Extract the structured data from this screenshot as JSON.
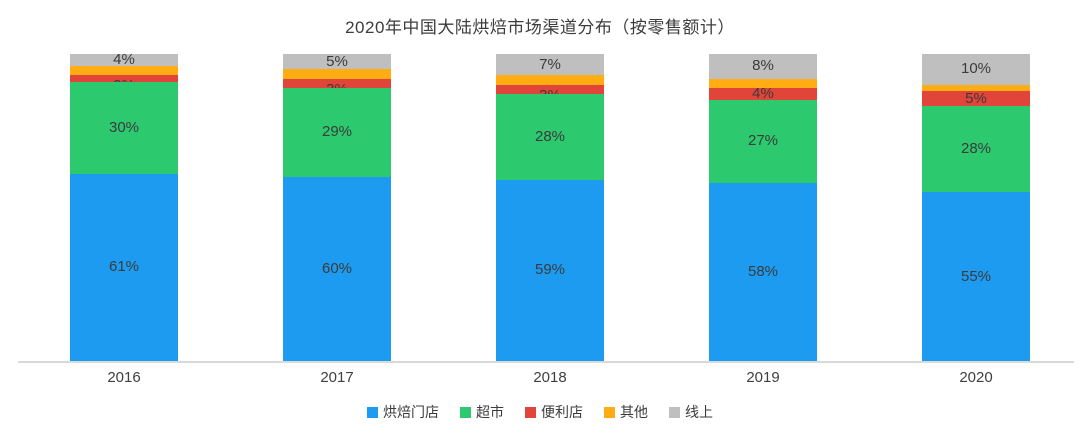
{
  "title": "2020年中国大陆烘焙市场渠道分布（按零售额计）",
  "chart_data": {
    "type": "bar",
    "variant": "stacked-100-percent",
    "title": "2020年中国大陆烘焙市场渠道分布（按零售额计）",
    "categories": [
      "2016",
      "2017",
      "2018",
      "2019",
      "2020"
    ],
    "unit": "%",
    "ylim": [
      0,
      100
    ],
    "grid": false,
    "legend_position": "bottom",
    "series": [
      {
        "name": "烘焙门店",
        "color": "#1d9bf0",
        "values": [
          61,
          60,
          59,
          58,
          55
        ],
        "data_labels": [
          "61%",
          "60%",
          "59%",
          "58%",
          "55%"
        ]
      },
      {
        "name": "超市",
        "color": "#2dc96e",
        "values": [
          30,
          29,
          28,
          27,
          28
        ],
        "data_labels": [
          "30%",
          "29%",
          "28%",
          "27%",
          "28%"
        ]
      },
      {
        "name": "便利店",
        "color": "#e14438",
        "values": [
          2,
          3,
          3,
          4,
          5
        ],
        "data_labels": [
          "2%",
          "3%",
          "3%",
          "4%",
          "5%"
        ]
      },
      {
        "name": "其他",
        "color": "#ffad12",
        "values": [
          3,
          3,
          3,
          3,
          2
        ],
        "data_labels": [
          "",
          "",
          "",
          "",
          ""
        ]
      },
      {
        "name": "线上",
        "color": "#bfbfbf",
        "values": [
          4,
          5,
          7,
          8,
          10
        ],
        "data_labels": [
          "4%",
          "5%",
          "7%",
          "8%",
          "10%"
        ]
      }
    ]
  },
  "colors": {
    "axis_line": "#d9d9d9",
    "label_text": "#3b3b3b"
  }
}
